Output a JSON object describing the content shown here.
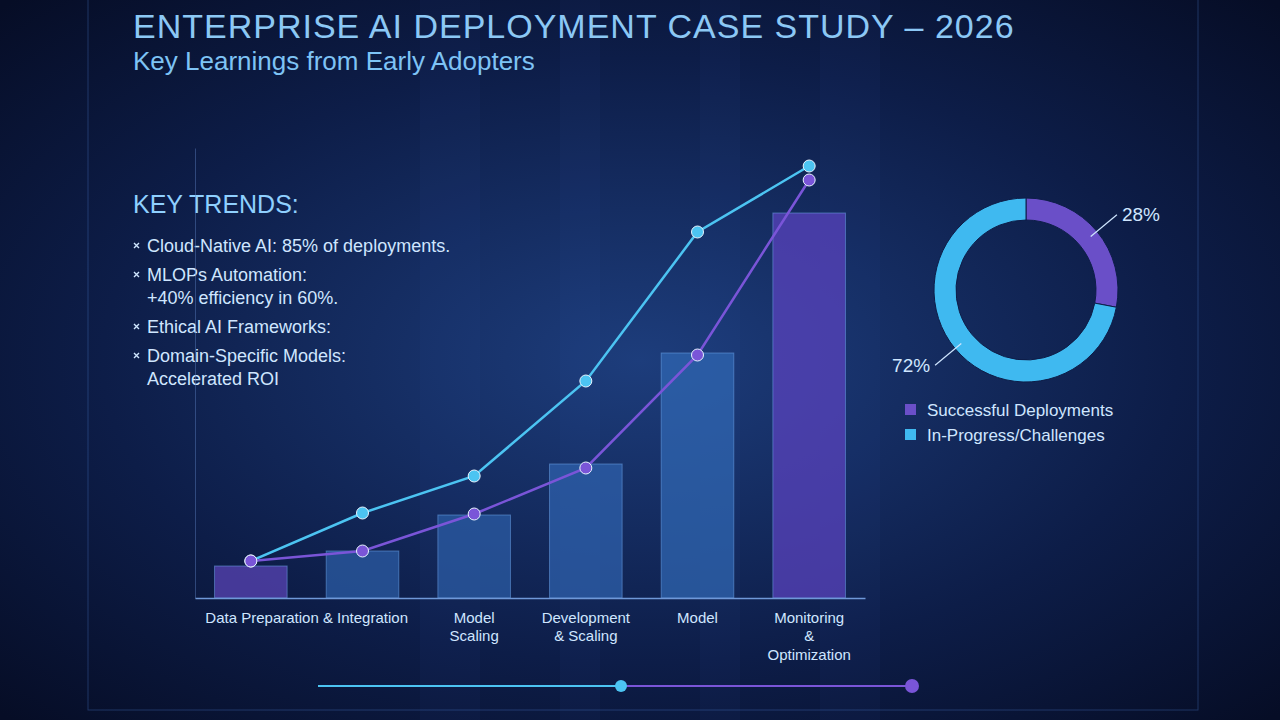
{
  "chart_data": [
    {
      "type": "bar",
      "title": "ENTERPRISE AI DEPLOYMENT CASE STUDY – 2026",
      "subtitle": "Key Learnings from Early Adopters",
      "annotations": {
        "heading": "KEY TRENDS:",
        "items": [
          [
            "Cloud-Native AI: 85% of deployments."
          ],
          [
            "MLOPs Automation:",
            "+40% efficiency in 60%."
          ],
          [
            "Ethical AI Frameworks:"
          ],
          [
            "Domain-Specific Models:",
            "Accelerated ROI"
          ]
        ]
      },
      "categories": [
        "Data Preparation & Integration",
        null,
        "Model Scaling",
        "Development & Scaling",
        "Model",
        "Monitoring & Optimization"
      ],
      "ylim": [
        0,
        450
      ],
      "tick_labels": "x",
      "series": [
        {
          "type": "bar",
          "colors": [
            "#5b45b8",
            "#2d5ea8",
            "#2d5ea8",
            "#2f63ae",
            "#3068b4",
            "#5c44c0"
          ],
          "values": [
            32,
            47,
            83,
            134,
            245,
            385
          ]
        },
        {
          "type": "line",
          "color": "#4cc4f2",
          "marker": "circle",
          "values": [
            37,
            85,
            122,
            217,
            366,
            432
          ]
        },
        {
          "type": "line",
          "color": "#7a55d8",
          "marker": "circle",
          "values": [
            37,
            47,
            84,
            130,
            243,
            418
          ]
        }
      ]
    },
    {
      "type": "donut",
      "categories": [
        "Successful Deployments",
        "In-Progress/Challenges"
      ],
      "values": [
        28,
        72
      ],
      "value_labels": [
        "28%",
        "72%"
      ],
      "colors": [
        "#6a4fc8",
        "#3fb9f0"
      ],
      "legend": "bottom",
      "data_labels": true
    }
  ]
}
